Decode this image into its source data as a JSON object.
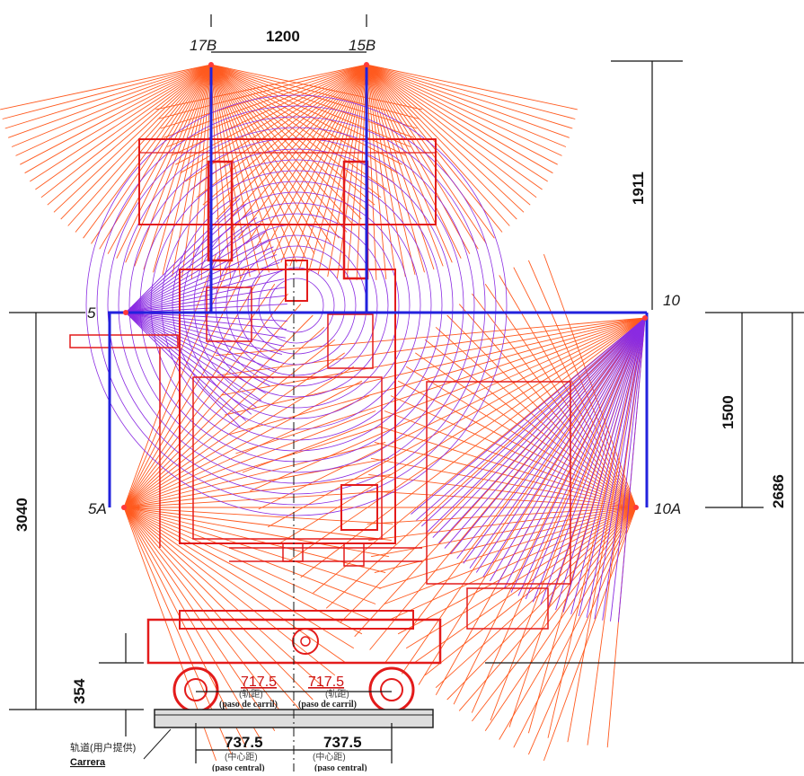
{
  "points": {
    "p17b": "17B",
    "p15b": "15B",
    "p5": "5",
    "p10": "10",
    "p5a": "5A",
    "p10a": "10A"
  },
  "dimensions": {
    "top_width": "1200",
    "right_upper": "1911",
    "right_mid": "1500",
    "right_total": "2686",
    "left_total": "3040",
    "left_bottom": "354"
  },
  "rail_gauge": {
    "left_value": "717.5",
    "right_value": "717.5",
    "left_cn": "(轨距)",
    "right_cn": "(轨距)",
    "left_es": "(paso de carril)",
    "right_es": "(paso de carril)"
  },
  "center_distance": {
    "left_value": "737.5",
    "right_value": "737.5",
    "left_cn": "(中心距)",
    "right_cn": "(中心距)",
    "left_es": "(paso central)",
    "right_es": "(paso central)"
  },
  "rail_note": {
    "cn": "轨道(用户提供)",
    "es": "Carrera"
  },
  "colors": {
    "ray_orange": "#ff5a1f",
    "ray_purple": "#8a2be2",
    "equipment_red": "#e31b1b",
    "frame_blue": "#2222dd",
    "dimension_black": "#111111"
  }
}
